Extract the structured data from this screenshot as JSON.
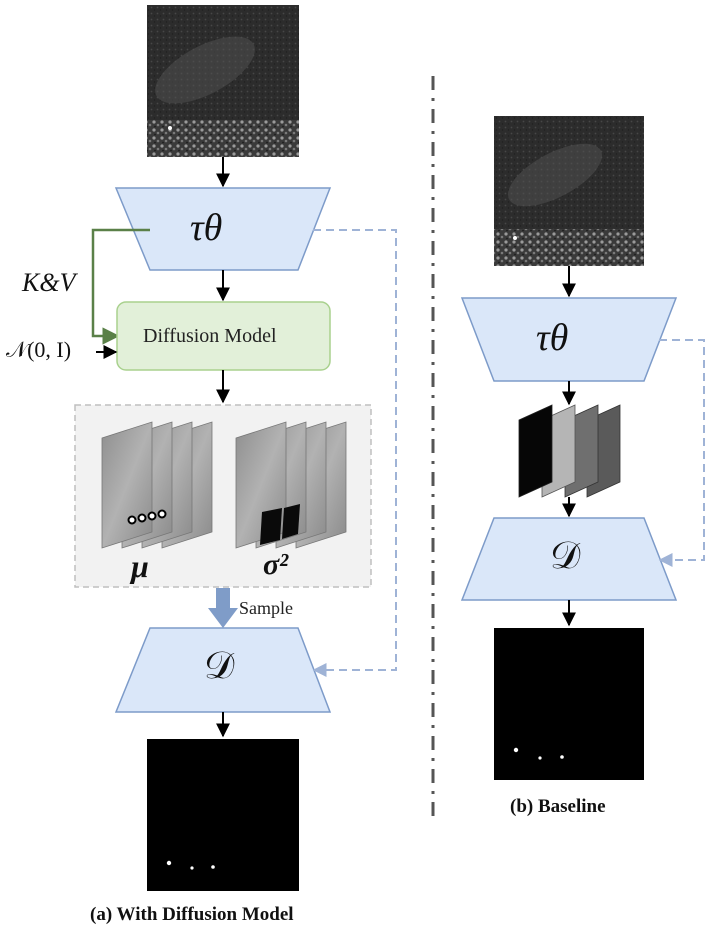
{
  "panel_a": {
    "caption": "(a) With Diffusion Model",
    "encoder_symbol": "τθ",
    "decoder_symbol": "𝒟",
    "diffusion_label": "Diffusion Model",
    "kv_label": "K&V",
    "noise_label": "𝒩(0, I)",
    "mu_label": "μ",
    "sigma_label": "σ²",
    "sample_label": "Sample"
  },
  "panel_b": {
    "caption": "(b) Baseline",
    "encoder_symbol": "τθ",
    "decoder_symbol": "𝒟"
  },
  "colors": {
    "trapezoid_fill": "#dae7f9",
    "trapezoid_stroke": "#7d9bc9",
    "diffusion_fill": "#e2f0d9",
    "diffusion_stroke": "#a9d18e",
    "kv_arrow": "#5a8048",
    "dashed_skip": "#9fb3d6",
    "sample_arrow": "#7f9cc8",
    "latent_box_fill": "#f2f2f2",
    "latent_box_stroke": "#bfbfbf"
  }
}
